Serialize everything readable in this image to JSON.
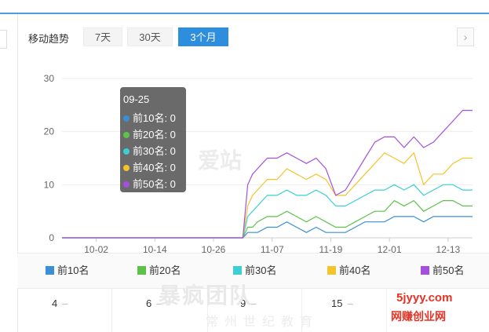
{
  "header": {
    "title": "移动趋势",
    "tabs": [
      {
        "label": "7天",
        "active": false
      },
      {
        "label": "30天",
        "active": false
      },
      {
        "label": "3个月",
        "active": true
      }
    ],
    "next_icon": "chevron-right-icon"
  },
  "colors": {
    "accent": "#2e8ede",
    "top10": "#3b8fd6",
    "top20": "#5cc24a",
    "top30": "#3ccfd3",
    "top40": "#f5c32c",
    "top50": "#a450dd"
  },
  "chart_data": {
    "type": "line",
    "x_ticks": [
      "10-02",
      "10-14",
      "10-26",
      "11-07",
      "11-19",
      "12-01",
      "12-13"
    ],
    "ylim": [
      0,
      30
    ],
    "y_ticks": [
      0,
      10,
      20,
      30
    ],
    "grid": true,
    "x": [
      "09-25",
      "10-01",
      "10-05",
      "10-10",
      "10-15",
      "10-20",
      "10-25",
      "10-30",
      "11-01",
      "11-02",
      "11-03",
      "11-04",
      "11-06",
      "11-08",
      "11-10",
      "11-12",
      "11-14",
      "11-16",
      "11-18",
      "11-20",
      "11-22",
      "11-24",
      "11-26",
      "11-28",
      "11-30",
      "12-02",
      "12-04",
      "12-06",
      "12-08",
      "12-10",
      "12-12",
      "12-14",
      "12-16",
      "12-18"
    ],
    "series": [
      {
        "name": "前10名",
        "values": [
          0,
          0,
          0,
          0,
          0,
          0,
          0,
          0,
          0,
          1,
          1,
          1,
          2,
          2,
          3,
          2,
          1,
          2,
          1,
          1,
          1,
          2,
          3,
          3,
          3,
          4,
          4,
          4,
          3,
          4,
          4,
          4,
          4,
          4
        ]
      },
      {
        "name": "前20名",
        "values": [
          0,
          0,
          0,
          0,
          0,
          0,
          0,
          0,
          0,
          2,
          2,
          3,
          4,
          4,
          5,
          4,
          3,
          4,
          3,
          2,
          2,
          3,
          4,
          5,
          5,
          7,
          6,
          7,
          5,
          6,
          7,
          7,
          6,
          6
        ]
      },
      {
        "name": "前30名",
        "values": [
          0,
          0,
          0,
          0,
          0,
          0,
          0,
          0,
          0,
          4,
          5,
          6,
          8,
          8,
          9,
          8,
          8,
          9,
          8,
          6,
          6,
          7,
          8,
          9,
          9,
          10,
          9,
          10,
          8,
          9,
          10,
          10,
          9,
          9
        ]
      },
      {
        "name": "前40名",
        "values": [
          0,
          0,
          0,
          0,
          0,
          0,
          0,
          0,
          0,
          6,
          8,
          9,
          11,
          11,
          13,
          12,
          11,
          12,
          11,
          8,
          8,
          10,
          12,
          14,
          16,
          15,
          14,
          16,
          10,
          12,
          12,
          14,
          15,
          15
        ]
      },
      {
        "name": "前50名",
        "values": [
          0,
          0,
          0,
          0,
          0,
          0,
          0,
          0,
          0,
          10,
          12,
          13,
          15,
          15,
          16,
          15,
          14,
          15,
          13,
          8,
          9,
          12,
          15,
          18,
          19,
          19,
          17,
          19,
          17,
          18,
          20,
          22,
          24,
          24
        ]
      }
    ]
  },
  "tooltip": {
    "date": "09-25",
    "rows": [
      {
        "label": "前10名: 0",
        "color": "#3b8fd6"
      },
      {
        "label": "前20名: 0",
        "color": "#5cc24a"
      },
      {
        "label": "前30名: 0",
        "color": "#3ccfd3"
      },
      {
        "label": "前40名: 0",
        "color": "#f5c32c"
      },
      {
        "label": "前50名: 0",
        "color": "#a450dd"
      }
    ]
  },
  "legend": [
    {
      "label": "前10名",
      "color": "#3b8fd6"
    },
    {
      "label": "前20名",
      "color": "#5cc24a"
    },
    {
      "label": "前30名",
      "color": "#3ccfd3"
    },
    {
      "label": "前40名",
      "color": "#f5c32c"
    },
    {
      "label": "前50名",
      "color": "#a450dd"
    }
  ],
  "values_row": [
    {
      "value": "4",
      "trend": "–"
    },
    {
      "value": "6",
      "trend": "–"
    },
    {
      "value": "9",
      "trend": "–"
    },
    {
      "value": "15",
      "trend": "–"
    }
  ],
  "watermark": {
    "main": "暴疯团队",
    "sub": "常州世纪教育",
    "logo": "爱站"
  },
  "site_mark": {
    "domain": "5jyyy.com",
    "name": "网赚创业网"
  }
}
